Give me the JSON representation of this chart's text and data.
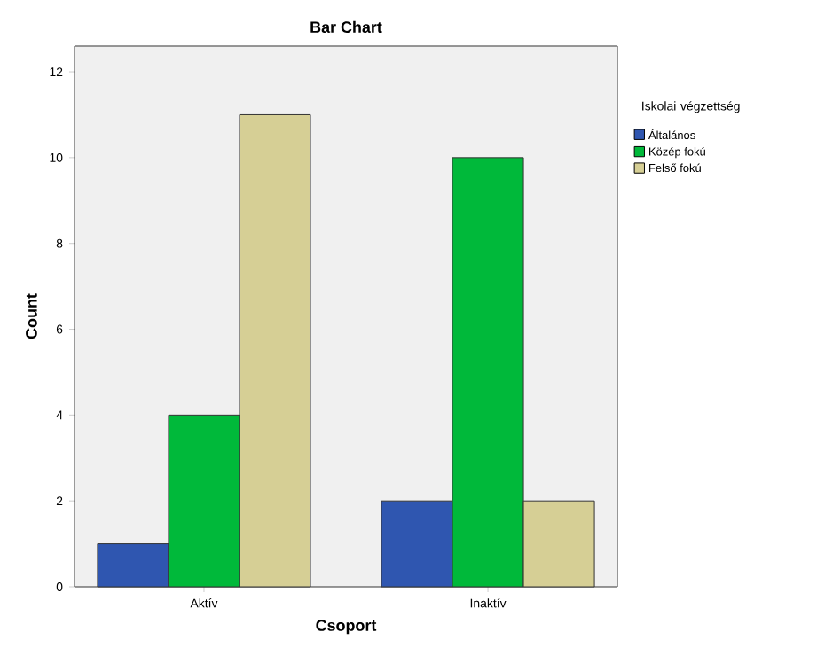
{
  "chart_data": {
    "type": "bar",
    "title": "Bar Chart",
    "xlabel": "Csoport",
    "ylabel": "Count",
    "legend_title": "Iskolai végzettség",
    "categories": [
      "Aktív",
      "Inaktív"
    ],
    "series": [
      {
        "name": "Általános",
        "color": "#2f56b0",
        "values": [
          1,
          2
        ]
      },
      {
        "name": "Közép fokú",
        "color": "#00b93a",
        "values": [
          4,
          10
        ]
      },
      {
        "name": "Felső fokú",
        "color": "#d6cf95",
        "values": [
          11,
          2
        ]
      }
    ],
    "ylim": [
      0,
      12.6
    ],
    "yticks": [
      0,
      2,
      4,
      6,
      8,
      10,
      12
    ],
    "grid": false,
    "legend": "right"
  }
}
